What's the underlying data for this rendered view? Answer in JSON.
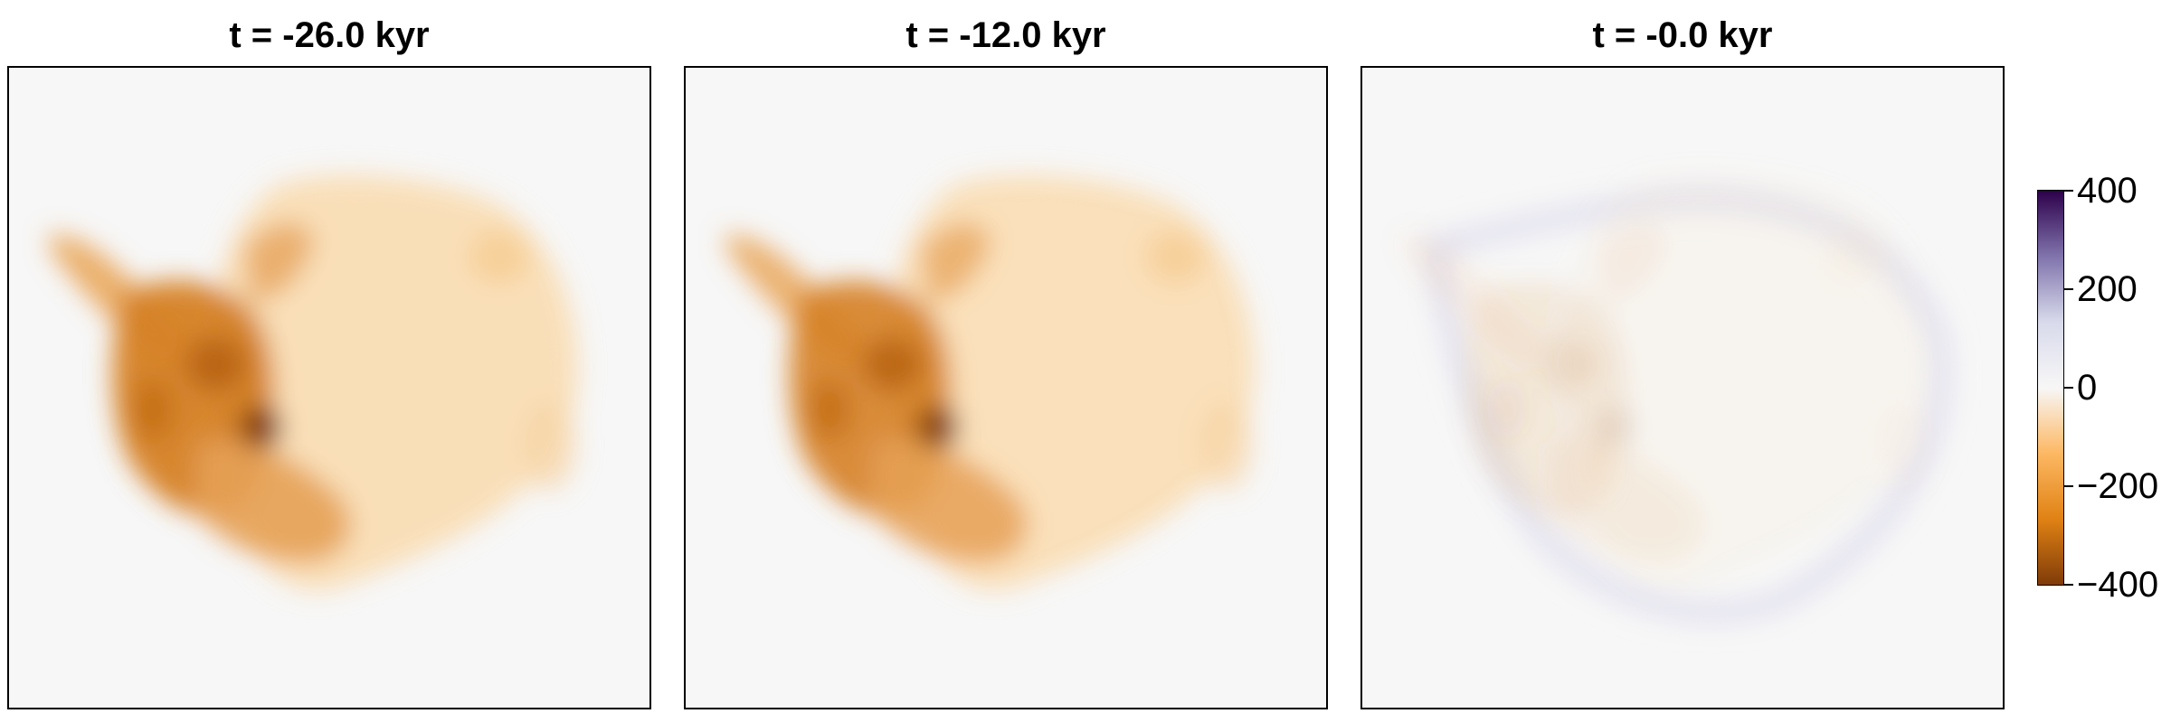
{
  "chart_data": [
    {
      "type": "heatmap",
      "title": "t = -26.0 kyr",
      "field_strength": 1.0
    },
    {
      "type": "heatmap",
      "title": "t = -12.0 kyr",
      "field_strength": 0.95
    },
    {
      "type": "heatmap",
      "title": "t = -0.0 kyr",
      "field_strength": 0.12
    }
  ],
  "colorbar": {
    "ticks": [
      "400",
      "200",
      "0",
      "−200",
      "−400"
    ],
    "range": [
      -400,
      400
    ],
    "colors": [
      "#2d004b",
      "#8073ac",
      "#d8daeb",
      "#f7f7f7",
      "#fdb863",
      "#e08214",
      "#7f3b08"
    ]
  }
}
